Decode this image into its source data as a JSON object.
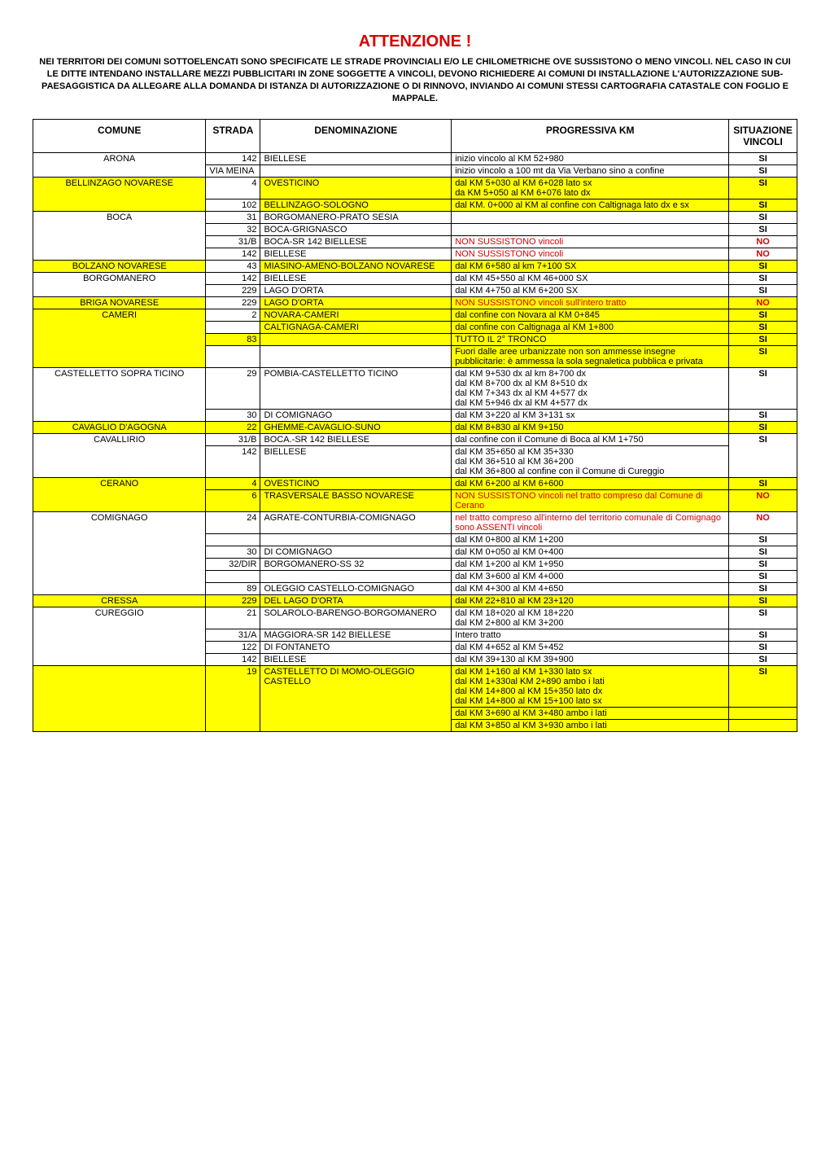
{
  "colors": {
    "highlight_yellow": "#ffff00",
    "highlight_orange": "#ffc000",
    "text_red": "#d80000",
    "text_black": "#000000",
    "background": "#ffffff"
  },
  "title": "ATTENZIONE !",
  "subtitle": "NEI TERRITORI DEI COMUNI SOTTOELENCATI SONO SPECIFICATE LE STRADE PROVINCIALI E/O LE CHILOMETRICHE OVE SUSSISTONO O MENO VINCOLI. NEL CASO IN CUI LE DITTE INTENDANO INSTALLARE MEZZI PUBBLICITARI IN ZONE SOGGETTE A VINCOLI, DEVONO RICHIEDERE AI COMUNI DI INSTALLAZIONE L'AUTORIZZAZIONE SUB-PAESAGGISTICA DA ALLEGARE ALLA DOMANDA DI ISTANZA DI AUTORIZZAZIONE O DI RINNOVO, INVIANDO AI COMUNI STESSI CARTOGRAFIA CATASTALE CON FOGLIO E MAPPALE.",
  "headers": {
    "comune": "COMUNE",
    "strada": "STRADA",
    "denominazione": "DENOMINAZIONE",
    "progressiva": "PROGRESSIVA KM",
    "vincoli": "SITUAZIONE VINCOLI"
  },
  "rows": [
    {
      "comune": "ARONA",
      "comune_rowspan": 2,
      "strada": "142",
      "denom": "BIELLESE",
      "prog": "inizio vincolo al KM 52+980",
      "vinc": "SI"
    },
    {
      "strada": "",
      "strada_text": "VIA MEINA",
      "denom": "",
      "prog": "inizio vincolo a 100 mt da Via Verbano sino a confine",
      "vinc": "SI"
    },
    {
      "comune": "BELLINZAGO NOVARESE",
      "comune_rowspan": 2,
      "comune_hl": "yellow",
      "strada": "4",
      "denom": "OVESTICINO",
      "denom_hl": "yellow",
      "prog": "dal KM 5+030 al KM 6+028 lato sx\nda KM 5+050 al KM 6+076 lato dx",
      "prog_hl": "yellow",
      "vinc": "SI",
      "vinc_hl": "yellow"
    },
    {
      "strada": "102",
      "denom": "BELLINZAGO-SOLOGNO",
      "denom_hl": "yellow",
      "prog": "dal KM. 0+000 al KM al confine con Caltignaga lato dx e sx",
      "prog_hl": "yellow",
      "vinc": "SI",
      "vinc_hl": "yellow"
    },
    {
      "comune": "BOCA",
      "comune_rowspan": 4,
      "strada": "31",
      "denom": "BORGOMANERO-PRATO SESIA",
      "prog": "",
      "vinc": "SI"
    },
    {
      "strada": "32",
      "denom": "BOCA-GRIGNASCO",
      "prog": "",
      "vinc": "SI"
    },
    {
      "strada": "31/B",
      "denom": "BOCA-SR 142 BIELLESE",
      "prog": "NON SUSSISTONO vincoli",
      "prog_red": true,
      "vinc": "NO",
      "vinc_red": true
    },
    {
      "strada": "142",
      "denom": "BIELLESE",
      "prog": "NON SUSSISTONO vincoli",
      "prog_red": true,
      "vinc": "NO",
      "vinc_red": true
    },
    {
      "comune": "BOLZANO NOVARESE",
      "comune_hl": "yellow",
      "strada": "43",
      "denom": "MIASINO-AMENO-BOLZANO NOVARESE",
      "denom_hl": "yellow",
      "prog": "dal KM 6+580 al km 7+100 SX",
      "prog_hl": "yellow",
      "vinc": "SI",
      "vinc_hl": "yellow"
    },
    {
      "comune": "BORGOMANERO",
      "comune_rowspan": 2,
      "strada": "142",
      "denom": "BIELLESE",
      "prog": "dal KM 45+550 al KM 46+000 SX",
      "vinc": "SI"
    },
    {
      "strada": "229",
      "denom": "LAGO D'ORTA",
      "prog": "dal KM 4+750 al KM 6+200 SX",
      "vinc": "SI"
    },
    {
      "comune": "BRIGA NOVARESE",
      "comune_hl": "yellow",
      "strada": "229",
      "denom": "LAGO D'ORTA",
      "denom_hl": "yellow",
      "prog": "NON SUSSISTONO vincoli sull'intero tratto",
      "prog_hl": "yellow",
      "prog_red": true,
      "vinc": "NO",
      "vinc_hl": "yellow",
      "vinc_red": true
    },
    {
      "comune": "CAMERI",
      "comune_rowspan": 4,
      "comune_hl": "yellow",
      "strada": "2",
      "denom": "NOVARA-CAMERI",
      "denom_hl": "yellow",
      "prog": "dal confine con Novara al KM 0+845",
      "prog_hl": "yellow",
      "vinc": "SI",
      "vinc_hl": "yellow"
    },
    {
      "strada": "",
      "denom": "CALTIGNAGA-CAMERI",
      "denom_hl": "yellow",
      "prog": "dal confine con Caltignaga al KM 1+800",
      "prog_hl": "yellow",
      "vinc": "SI",
      "vinc_hl": "yellow"
    },
    {
      "strada": "83",
      "strada_hl": "yellow",
      "denom": "",
      "denom_hl": "yellow",
      "prog": "TUTTO IL 2° TRONCO",
      "prog_hl": "yellow",
      "vinc": "SI",
      "vinc_hl": "yellow"
    },
    {
      "strada": "",
      "denom": "",
      "prog": "Fuori dalle aree urbanizzate non son ammesse insegne pubblicitarie: è ammessa la sola segnaletica pubblica e privata",
      "prog_hl": "yellow",
      "vinc": "SI",
      "vinc_hl": "yellow"
    },
    {
      "comune": "CASTELLETTO SOPRA TICINO",
      "comune_rowspan": 2,
      "strada": "29",
      "denom": "POMBIA-CASTELLETTO TICINO",
      "prog": "dal KM 9+530 dx al km 8+700 dx\ndal KM 8+700 dx al KM 8+510 dx\ndal KM 7+343 dx al KM 4+577 dx\ndal KM 5+946 dx al KM 4+577 dx",
      "vinc": "SI"
    },
    {
      "strada": "30",
      "denom": "DI COMIGNAGO",
      "prog": "dal KM 3+220 al KM 3+131 sx",
      "vinc": "SI"
    },
    {
      "comune": "CAVAGLIO D'AGOGNA",
      "comune_hl": "yellow",
      "strada": "22",
      "strada_hl": "yellow",
      "denom": "GHEMME-CAVAGLIO-SUNO",
      "denom_hl": "yellow",
      "prog": "dal KM 8+830 al KM 9+150",
      "prog_hl": "yellow",
      "vinc": "SI",
      "vinc_hl": "yellow"
    },
    {
      "comune": "CAVALLIRIO",
      "comune_rowspan": 2,
      "strada": "31/B",
      "denom": "BOCA.-SR 142 BIELLESE",
      "prog": "dal confine con il Comune di Boca al KM 1+750",
      "vinc": "SI",
      "vinc_rowspan": 2
    },
    {
      "strada": "142",
      "denom": "BIELLESE",
      "prog": "dal KM 35+650 al KM 35+330\ndal KM 36+510 al KM 36+200\ndal KM 36+800 al confine con il Comune di Cureggio"
    },
    {
      "comune": "CERANO",
      "comune_rowspan": 2,
      "comune_hl": "yellow",
      "strada": "4",
      "strada_hl": "yellow",
      "denom": "OVESTICINO",
      "denom_hl": "yellow",
      "prog": "dal KM 6+200 al KM 6+600",
      "prog_hl": "yellow",
      "vinc": "SI",
      "vinc_hl": "yellow"
    },
    {
      "strada": "6",
      "strada_hl": "yellow",
      "denom": "TRASVERSALE BASSO NOVARESE",
      "denom_hl": "yellow",
      "prog": "NON SUSSISTONO vincoli nel tratto compreso dal Comune di Cerano",
      "prog_hl": "yellow",
      "prog_red": true,
      "vinc": "NO",
      "vinc_hl": "yellow",
      "vinc_red": true
    },
    {
      "comune": "COMIGNAGO",
      "comune_rowspan": 6,
      "strada": "24",
      "denom": "AGRATE-CONTURBIA-COMIGNAGO",
      "prog": "nel tratto compreso all'interno del territorio comunale di Comignago sono ASSENTI vincoli",
      "prog_red": true,
      "vinc": "NO",
      "vinc_red": true
    },
    {
      "strada": "",
      "denom": "",
      "prog": "dal KM 0+800 al KM 1+200",
      "vinc": "SI"
    },
    {
      "strada": "30",
      "denom": "DI COMIGNAGO",
      "prog": "dal KM 0+050 al KM 0+400",
      "vinc": "SI"
    },
    {
      "strada": "32/DIR",
      "denom": "BORGOMANERO-SS 32",
      "prog": "dal KM 1+200 al KM 1+950",
      "vinc": "SI"
    },
    {
      "strada": "",
      "denom": "",
      "prog": "dal KM 3+600 al KM 4+000",
      "vinc": "SI"
    },
    {
      "strada": "89",
      "denom": "OLEGGIO CASTELLO-COMIGNAGO",
      "prog": "dal KM 4+300 al KM 4+650",
      "vinc": "SI"
    },
    {
      "comune": "CRESSA",
      "comune_hl": "yellow",
      "strada": "229",
      "strada_hl": "yellow",
      "denom": "DEL LAGO D'ORTA",
      "denom_hl": "yellow",
      "prog": "dal KM 22+810 al KM 23+120",
      "prog_hl": "yellow",
      "vinc": "SI",
      "vinc_hl": "yellow"
    },
    {
      "comune": "CUREGGIO",
      "comune_rowspan": 4,
      "strada": "21",
      "denom": "SOLAROLO-BARENGO-BORGOMANERO",
      "prog": "dal KM 18+020 al KM 18+220\ndal KM 2+800 al KM 3+200",
      "vinc": "SI"
    },
    {
      "strada": "31/A",
      "denom": "MAGGIORA-SR 142 BIELLESE",
      "prog": "Intero tratto",
      "vinc": "SI"
    },
    {
      "strada": "122",
      "denom": "DI FONTANETO",
      "prog": "dal KM 4+652 al KM 5+452",
      "vinc": "SI"
    },
    {
      "strada": "142",
      "denom": "BIELLESE",
      "prog": "dal KM 39+130 al KM 39+900",
      "vinc": "SI"
    },
    {
      "comune": "",
      "comune_rowspan": 3,
      "comune_hl": "yellow",
      "strada": "19",
      "strada_hl": "yellow",
      "strada_rowspan": 3,
      "denom": "CASTELLETTO DI MOMO-OLEGGIO CASTELLO",
      "denom_hl": "yellow",
      "denom_rowspan": 3,
      "prog": "dal KM 1+160 al KM 1+330 lato sx\ndal KM 1+330al KM 2+890 ambo i lati\ndal KM 14+800 al KM 15+350 lato dx\ndal KM 14+800 al KM 15+100 lato sx",
      "prog_hl": "yellow",
      "vinc": "SI",
      "vinc_hl": "yellow"
    },
    {
      "prog": "dal KM 3+690 al KM 3+480 ambo i lati",
      "prog_hl": "yellow",
      "vinc": "",
      "vinc_hl": "yellow"
    },
    {
      "prog": "dal KM 3+850 al KM 3+930 ambo i lati",
      "prog_hl": "yellow",
      "vinc": "",
      "vinc_hl": "yellow"
    }
  ]
}
